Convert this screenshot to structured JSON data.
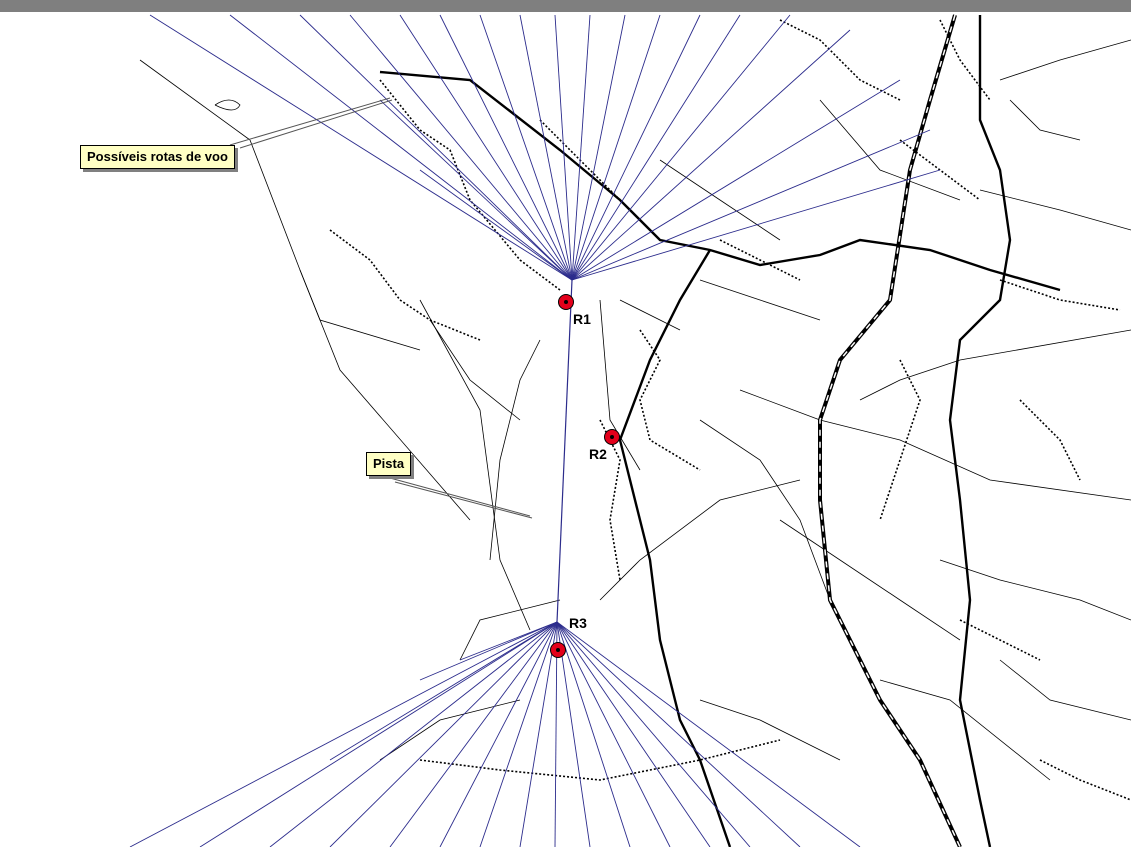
{
  "callouts": {
    "routes_label": "Possíveis rotas de voo",
    "runway_label": "Pista"
  },
  "receptors": [
    {
      "id": "R1"
    },
    {
      "id": "R2"
    },
    {
      "id": "R3"
    }
  ],
  "colors": {
    "flight_route": "#2c2c8c",
    "roads": "#000000",
    "receptor": "#e3001b",
    "callout_fill": "#ffffc4",
    "header_bar": "#7f7f7f"
  }
}
